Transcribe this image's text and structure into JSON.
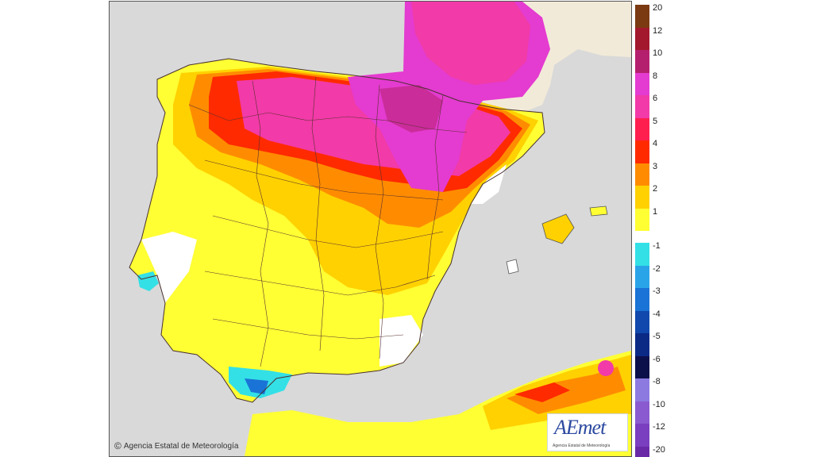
{
  "map": {
    "credit_text": "Agencia Estatal de Meteorología",
    "logo_text": "AEmet",
    "logo_subtext": "Agencia Estatal de Meteorología",
    "sea_color": "#d9d9d9",
    "foreign_land_color": "#f2ead8"
  },
  "legend": {
    "positive": [
      {
        "label": "20",
        "color": "#7b3a12"
      },
      {
        "label": "12",
        "color": "#a3182d"
      },
      {
        "label": "10",
        "color": "#b5206e"
      },
      {
        "label": "8",
        "color": "#e43bd0"
      },
      {
        "label": "6",
        "color": "#f23aa8"
      },
      {
        "label": "5",
        "color": "#ff1f4f"
      },
      {
        "label": "4",
        "color": "#ff2a00"
      },
      {
        "label": "3",
        "color": "#ff8c00"
      },
      {
        "label": "2",
        "color": "#ffd100"
      },
      {
        "label": "1",
        "color": "#ffff33"
      }
    ],
    "negative": [
      {
        "label": "-1",
        "color": "#33e0e6"
      },
      {
        "label": "-2",
        "color": "#2aa4e8"
      },
      {
        "label": "-3",
        "color": "#1a73d6"
      },
      {
        "label": "-4",
        "color": "#1148ad"
      },
      {
        "label": "-5",
        "color": "#0a2a86"
      },
      {
        "label": "-6",
        "color": "#0b0f4a"
      },
      {
        "label": "-8",
        "color": "#8c7ae0"
      },
      {
        "label": "-10",
        "color": "#8a5ad0"
      },
      {
        "label": "-12",
        "color": "#7a3ec0"
      },
      {
        "label": "-20",
        "color": "#6a2aa8"
      }
    ]
  }
}
